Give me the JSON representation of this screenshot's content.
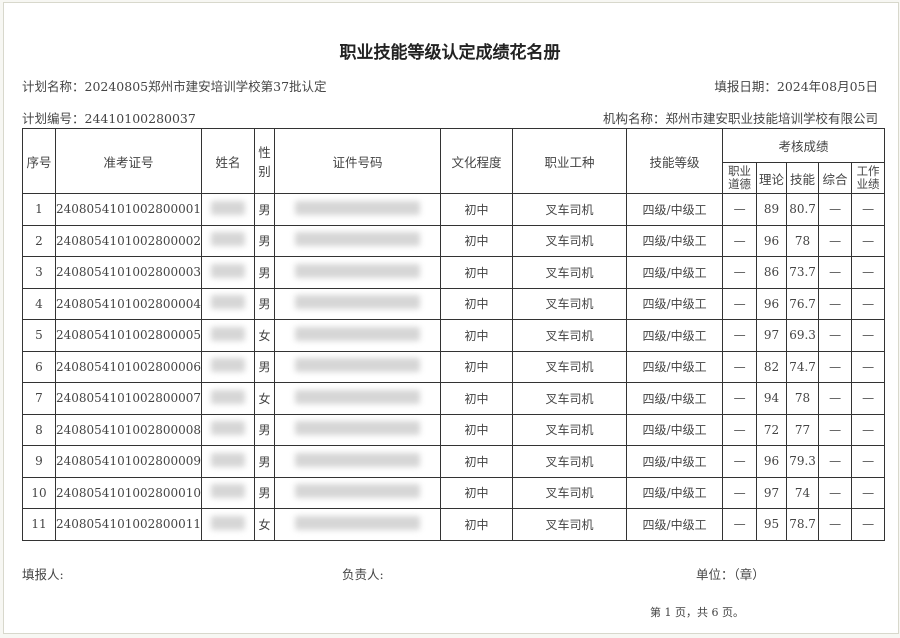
{
  "title": "职业技能等级认定成绩花名册",
  "plan_name": "计划名称：20240805郑州市建安培训学校第37批认定",
  "fill_date": "填报日期：2024年08月05日",
  "plan_no": "计划编号：24410100280037",
  "org_name": "机构名称：郑州市建安职业技能培训学校有限公司",
  "headers": {
    "seq": "序号",
    "exam_no": "准考证号",
    "name": "姓名",
    "gender": "性别",
    "id_no": "证件号码",
    "education": "文化程度",
    "occupation": "职业工种",
    "level": "技能等级",
    "scores": "考核成绩",
    "ethics": "职业道德",
    "theory": "理论",
    "skill": "技能",
    "overall": "综合",
    "performance": "工作业绩"
  },
  "rows": [
    {
      "seq": "1",
      "exam_no": "240805410100280000​1",
      "gender": "男",
      "education": "初中",
      "occupation": "叉车司机",
      "level": "四级/中级工",
      "ethics": "—",
      "theory": "89",
      "skill": "80.7",
      "overall": "—",
      "performance": "—"
    },
    {
      "seq": "2",
      "exam_no": "2408054101002800002",
      "gender": "男",
      "education": "初中",
      "occupation": "叉车司机",
      "level": "四级/中级工",
      "ethics": "—",
      "theory": "96",
      "skill": "78",
      "overall": "—",
      "performance": "—"
    },
    {
      "seq": "3",
      "exam_no": "2408054101002800003",
      "gender": "男",
      "education": "初中",
      "occupation": "叉车司机",
      "level": "四级/中级工",
      "ethics": "—",
      "theory": "86",
      "skill": "73.7",
      "overall": "—",
      "performance": "—"
    },
    {
      "seq": "4",
      "exam_no": "2408054101002800004",
      "gender": "男",
      "education": "初中",
      "occupation": "叉车司机",
      "level": "四级/中级工",
      "ethics": "—",
      "theory": "96",
      "skill": "76.7",
      "overall": "—",
      "performance": "—"
    },
    {
      "seq": "5",
      "exam_no": "2408054101002800005",
      "gender": "女",
      "education": "初中",
      "occupation": "叉车司机",
      "level": "四级/中级工",
      "ethics": "—",
      "theory": "97",
      "skill": "69.3",
      "overall": "—",
      "performance": "—"
    },
    {
      "seq": "6",
      "exam_no": "2408054101002800006",
      "gender": "男",
      "education": "初中",
      "occupation": "叉车司机",
      "level": "四级/中级工",
      "ethics": "—",
      "theory": "82",
      "skill": "74.7",
      "overall": "—",
      "performance": "—"
    },
    {
      "seq": "7",
      "exam_no": "2408054101002800007",
      "gender": "女",
      "education": "初中",
      "occupation": "叉车司机",
      "level": "四级/中级工",
      "ethics": "—",
      "theory": "94",
      "skill": "78",
      "overall": "—",
      "performance": "—"
    },
    {
      "seq": "8",
      "exam_no": "2408054101002800008",
      "gender": "男",
      "education": "初中",
      "occupation": "叉车司机",
      "level": "四级/中级工",
      "ethics": "—",
      "theory": "72",
      "skill": "77",
      "overall": "—",
      "performance": "—"
    },
    {
      "seq": "9",
      "exam_no": "2408054101002800009",
      "gender": "男",
      "education": "初中",
      "occupation": "叉车司机",
      "level": "四级/中级工",
      "ethics": "—",
      "theory": "96",
      "skill": "79.3",
      "overall": "—",
      "performance": "—"
    },
    {
      "seq": "10",
      "exam_no": "2408054101002800010",
      "gender": "男",
      "education": "初中",
      "occupation": "叉车司机",
      "level": "四级/中级工",
      "ethics": "—",
      "theory": "97",
      "skill": "74",
      "overall": "—",
      "performance": "—"
    },
    {
      "seq": "11",
      "exam_no": "2408054101002800011",
      "gender": "女",
      "education": "初中",
      "occupation": "叉车司机",
      "level": "四级/中级工",
      "ethics": "—",
      "theory": "95",
      "skill": "78.7",
      "overall": "—",
      "performance": "—"
    }
  ],
  "footer": {
    "filler": "填报人:",
    "responsible": "负责人:",
    "unit": "单位：（章）",
    "page": "第 1 页，共 6 页。"
  }
}
